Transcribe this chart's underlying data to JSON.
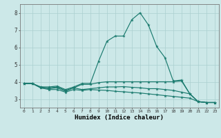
{
  "xlabel": "Humidex (Indice chaleur)",
  "x": [
    0,
    1,
    2,
    3,
    4,
    5,
    6,
    7,
    8,
    9,
    10,
    11,
    12,
    13,
    14,
    15,
    16,
    17,
    18,
    19,
    20,
    21,
    22,
    23
  ],
  "line1": [
    3.9,
    3.9,
    3.7,
    3.7,
    3.75,
    3.55,
    3.7,
    3.9,
    3.9,
    5.2,
    6.35,
    6.65,
    6.65,
    7.6,
    8.0,
    7.3,
    6.05,
    5.4,
    4.05,
    4.1,
    3.3,
    2.85,
    2.8,
    2.8
  ],
  "line2": [
    3.9,
    3.9,
    3.7,
    3.65,
    3.7,
    3.5,
    3.65,
    3.85,
    3.85,
    3.95,
    4.0,
    4.0,
    4.0,
    4.0,
    4.0,
    4.0,
    4.0,
    4.0,
    4.0,
    4.05,
    3.3,
    2.85,
    2.8,
    2.8
  ],
  "line3": [
    3.9,
    3.9,
    3.65,
    3.6,
    3.65,
    3.45,
    3.65,
    3.55,
    3.6,
    3.65,
    3.7,
    3.7,
    3.72,
    3.68,
    3.65,
    3.6,
    3.6,
    3.55,
    3.5,
    3.4,
    3.3,
    2.85,
    2.8,
    2.8
  ],
  "line4": [
    3.9,
    3.9,
    3.65,
    3.55,
    3.55,
    3.4,
    3.55,
    3.5,
    3.55,
    3.52,
    3.5,
    3.45,
    3.42,
    3.38,
    3.35,
    3.3,
    3.25,
    3.2,
    3.15,
    3.1,
    3.05,
    2.85,
    2.8,
    2.8
  ],
  "line_color": "#1a7a6e",
  "bg_color": "#cce8e8",
  "grid_color": "#aacfcf",
  "ylim": [
    2.5,
    8.5
  ],
  "xlim": [
    -0.5,
    23.5
  ],
  "yticks": [
    3,
    4,
    5,
    6,
    7,
    8
  ],
  "xticks": [
    0,
    1,
    2,
    3,
    4,
    5,
    6,
    7,
    8,
    9,
    10,
    11,
    12,
    13,
    14,
    15,
    16,
    17,
    18,
    19,
    20,
    21,
    22,
    23
  ]
}
